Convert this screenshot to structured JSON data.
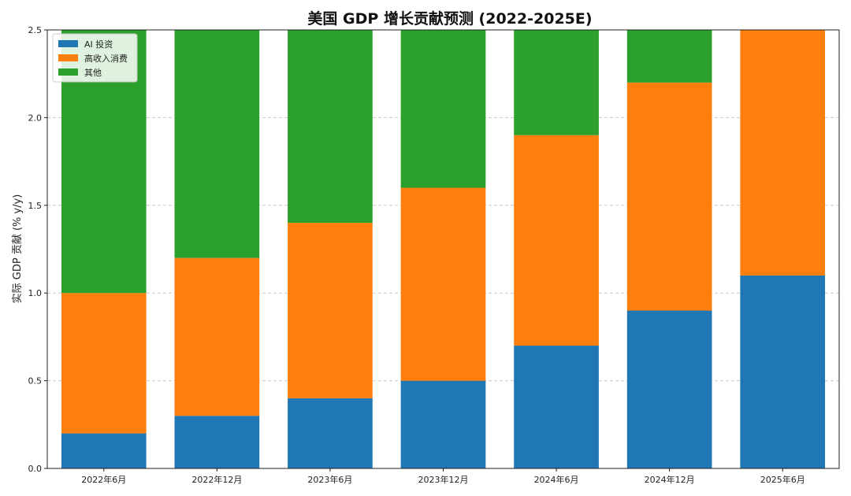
{
  "chart_data": {
    "type": "bar",
    "stacked": true,
    "title": "美国 GDP 增长贡献预测 (2022-2025E)",
    "xlabel": "",
    "ylabel": "实际 GDP 贡献 (% y/y)",
    "categories": [
      "2022年6月",
      "2022年12月",
      "2023年6月",
      "2023年12月",
      "2024年6月",
      "2024年12月",
      "2025年6月"
    ],
    "series": [
      {
        "name": "AI 投资",
        "color": "#1f77b4",
        "values": [
          0.2,
          0.3,
          0.4,
          0.5,
          0.7,
          0.9,
          1.1
        ]
      },
      {
        "name": "高收入消费",
        "color": "#ff7f0e",
        "values": [
          0.8,
          0.9,
          1.0,
          1.1,
          1.2,
          1.3,
          1.4
        ]
      },
      {
        "name": "其他",
        "color": "#2ca02c",
        "values": [
          1.5,
          1.3,
          1.1,
          0.9,
          0.6,
          0.3,
          0.0
        ]
      }
    ],
    "ylim": [
      0,
      2.5
    ],
    "yticks": [
      "0.0",
      "0.5",
      "1.0",
      "1.5",
      "2.0",
      "2.5"
    ],
    "grid": "y-dashed",
    "legend_position": "top-left"
  }
}
